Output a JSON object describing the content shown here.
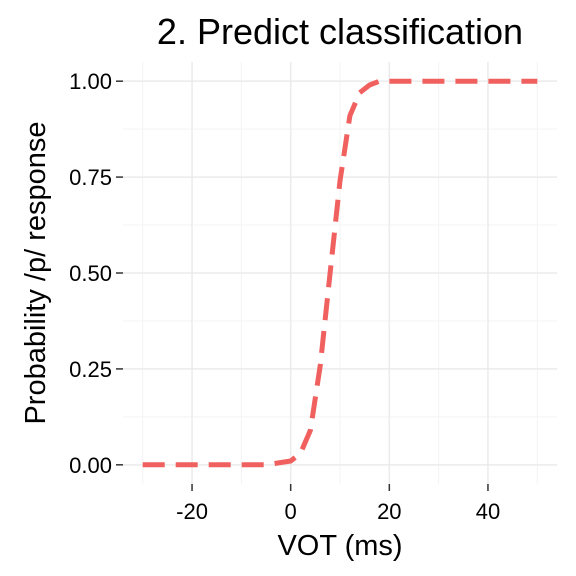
{
  "chart_data": {
    "type": "line",
    "title": "2. Predict classification",
    "xlabel": "VOT (ms)",
    "ylabel": "Probability /p/ response",
    "xlim": [
      -30,
      50
    ],
    "ylim": [
      0,
      1
    ],
    "x_ticks": [
      -20,
      0,
      20,
      40
    ],
    "x_tick_labels": [
      "-20",
      "0",
      "20",
      "40"
    ],
    "y_ticks": [
      0,
      0.25,
      0.5,
      0.75,
      1
    ],
    "y_tick_labels": [
      "0.00",
      "0.25",
      "0.50",
      "0.75",
      "1.00"
    ],
    "grid": true,
    "legend": "none",
    "series": [
      {
        "line_style": "dashed",
        "color": "#F0605F",
        "x": [
          -30,
          -20,
          -10,
          -5,
          0,
          2,
          4,
          6,
          8,
          10,
          12,
          14,
          16,
          18,
          20,
          25,
          30,
          40,
          50
        ],
        "y": [
          0.0,
          0.0,
          0.0,
          0.0,
          0.01,
          0.03,
          0.09,
          0.26,
          0.5,
          0.74,
          0.91,
          0.97,
          0.99,
          1.0,
          1.0,
          1.0,
          1.0,
          1.0,
          1.0
        ]
      }
    ]
  }
}
